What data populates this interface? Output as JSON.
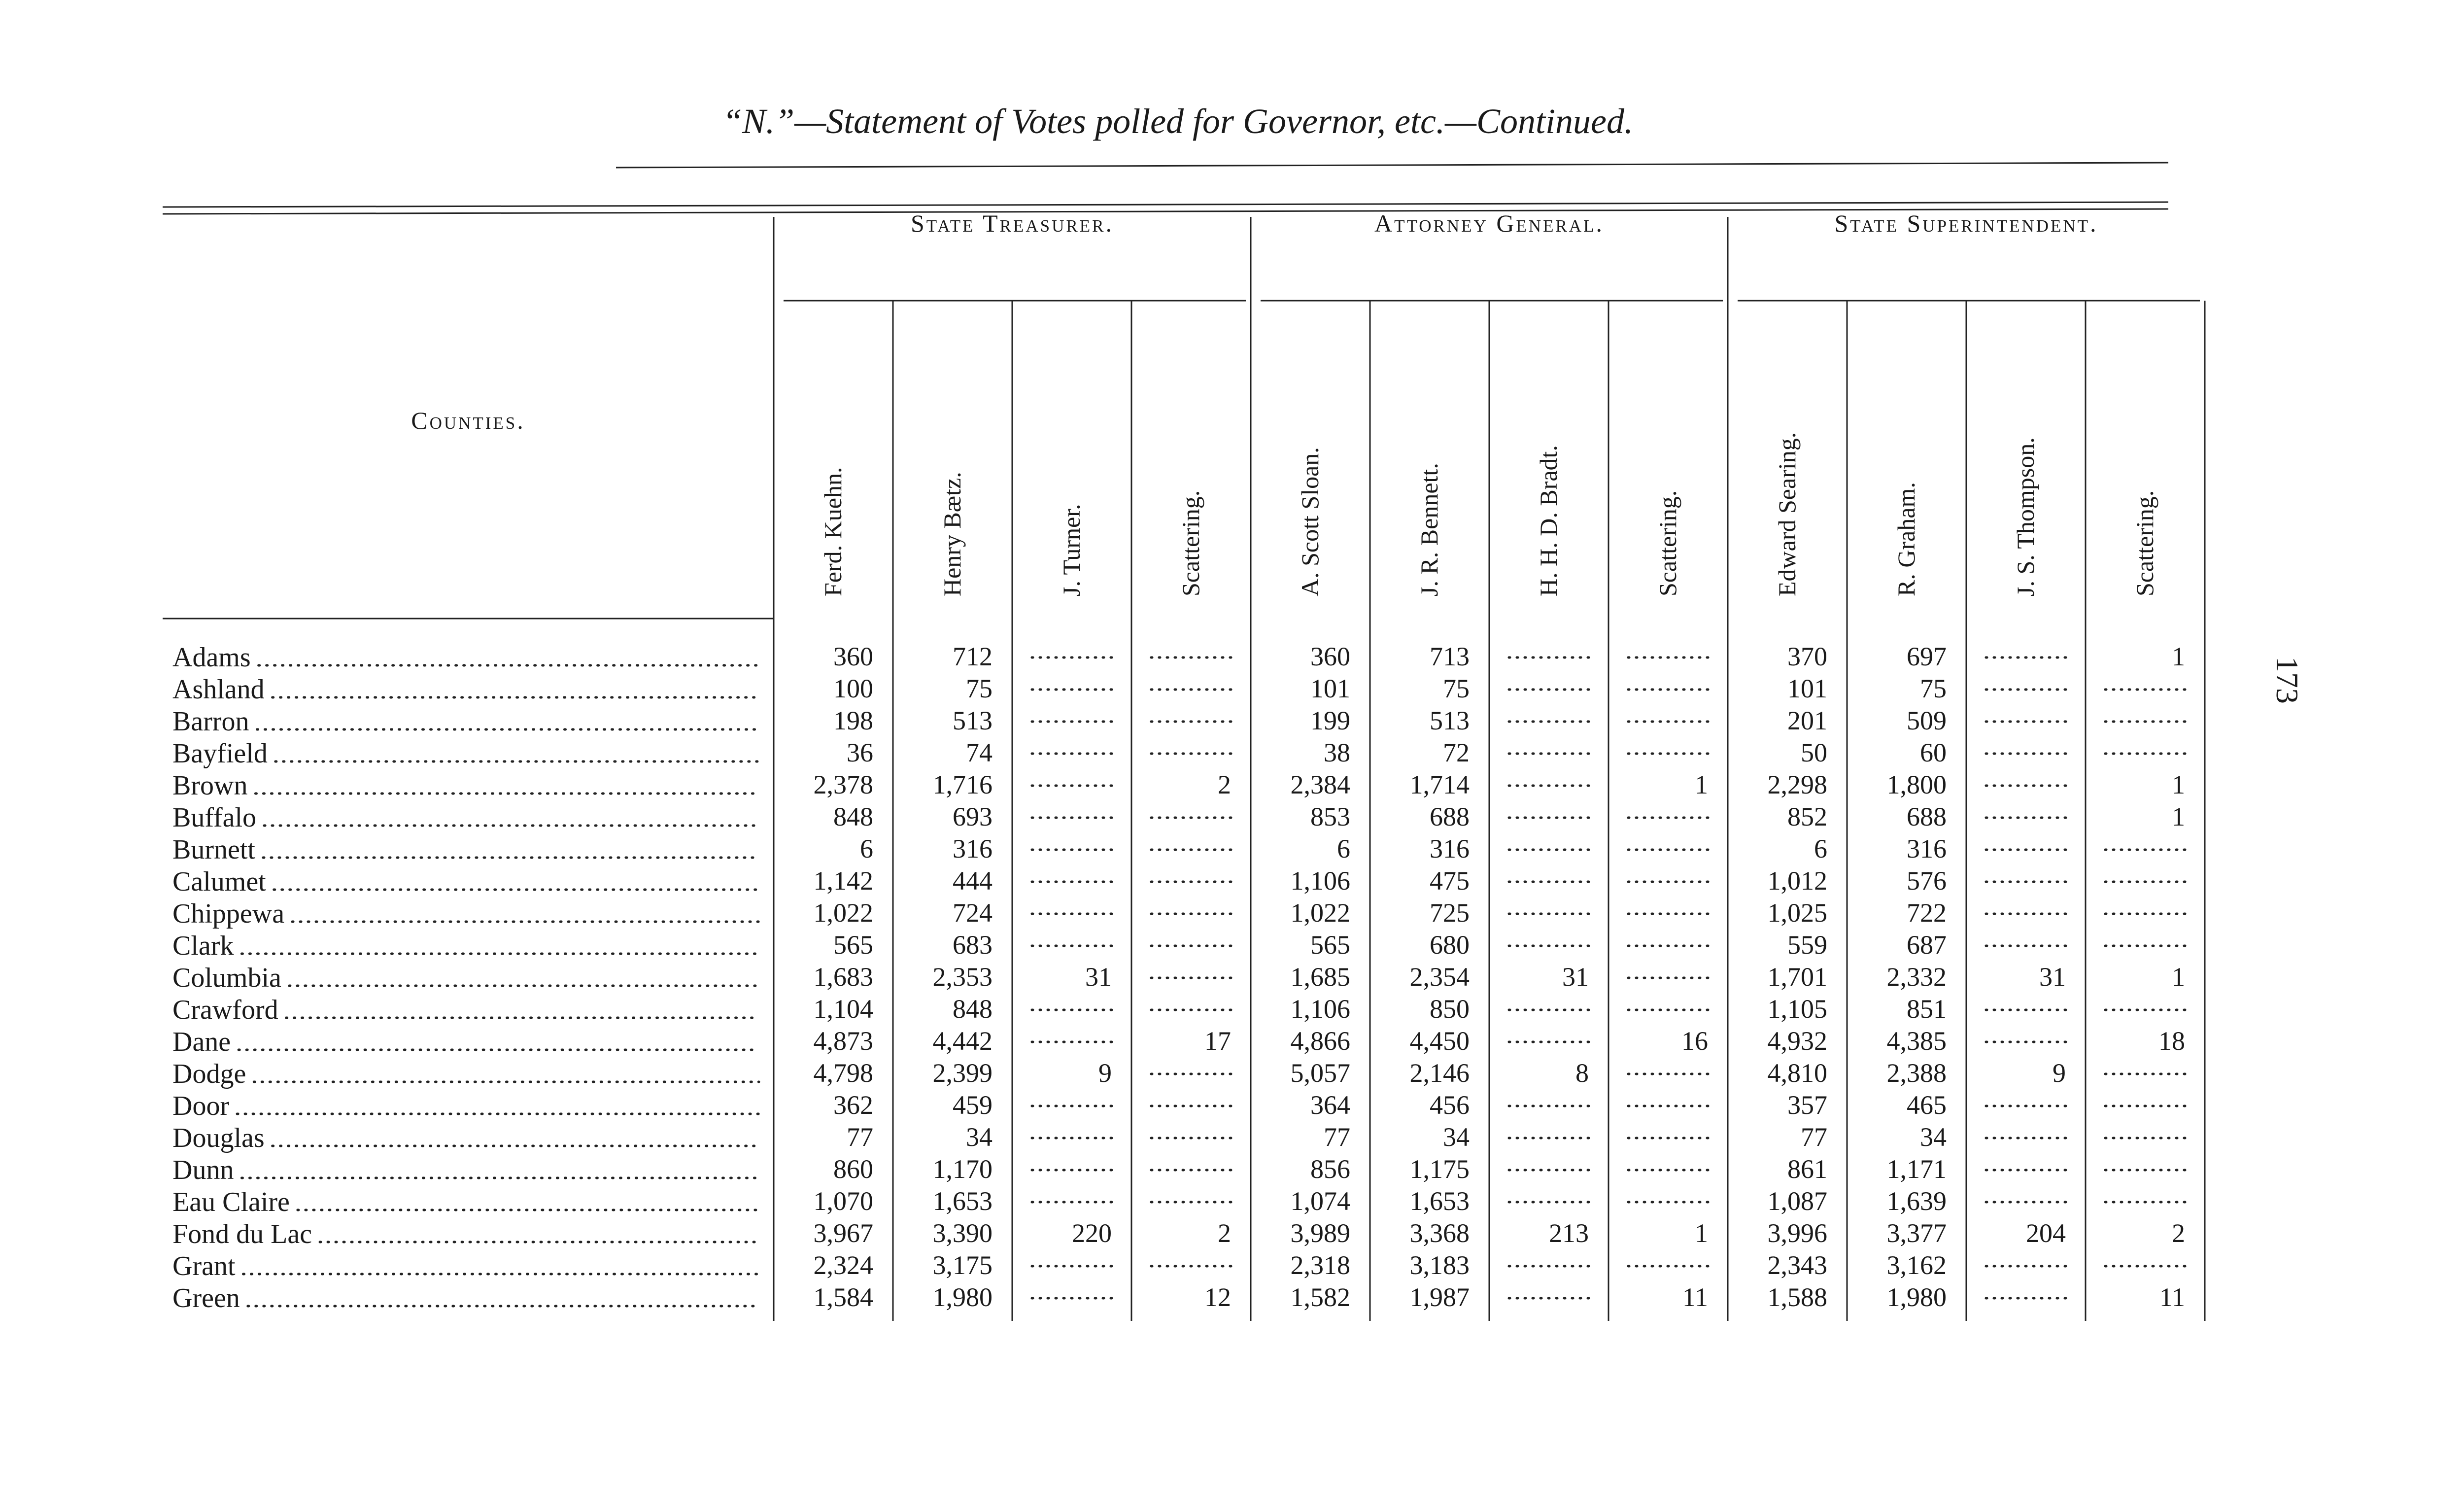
{
  "title": "“N.”—Statement of Votes polled for Governor, etc.—Continued.",
  "page_number": "173",
  "table": {
    "county_header": "Counties.",
    "groups": [
      {
        "title": "State Treasurer.",
        "columns": [
          "Ferd. Kuehn.",
          "Henry Bætz.",
          "J. Turner.",
          "Scattering."
        ]
      },
      {
        "title": "Attorney General.",
        "columns": [
          "A. Scott Sloan.",
          "J. R. Bennett.",
          "H. H. D. Bradt.",
          "Scattering."
        ]
      },
      {
        "title": "State Superintendent.",
        "columns": [
          "Edward Searing.",
          "R. Graham.",
          "J. S. Thompson.",
          "Scattering."
        ]
      }
    ],
    "rows": [
      {
        "county": "Adams",
        "values": [
          "360",
          "712",
          null,
          null,
          "360",
          "713",
          null,
          null,
          "370",
          "697",
          null,
          "1"
        ]
      },
      {
        "county": "Ashland",
        "values": [
          "100",
          "75",
          null,
          null,
          "101",
          "75",
          null,
          null,
          "101",
          "75",
          null,
          null
        ]
      },
      {
        "county": "Barron",
        "values": [
          "198",
          "513",
          null,
          null,
          "199",
          "513",
          null,
          null,
          "201",
          "509",
          null,
          null
        ]
      },
      {
        "county": "Bayfield",
        "values": [
          "36",
          "74",
          null,
          null,
          "38",
          "72",
          null,
          null,
          "50",
          "60",
          null,
          null
        ]
      },
      {
        "county": "Brown",
        "values": [
          "2,378",
          "1,716",
          null,
          "2",
          "2,384",
          "1,714",
          null,
          "1",
          "2,298",
          "1,800",
          null,
          "1"
        ]
      },
      {
        "county": "Buffalo",
        "values": [
          "848",
          "693",
          null,
          null,
          "853",
          "688",
          null,
          null,
          "852",
          "688",
          null,
          "1"
        ]
      },
      {
        "county": "Burnett",
        "values": [
          "6",
          "316",
          null,
          null,
          "6",
          "316",
          null,
          null,
          "6",
          "316",
          null,
          null
        ]
      },
      {
        "county": "Calumet",
        "values": [
          "1,142",
          "444",
          null,
          null,
          "1,106",
          "475",
          null,
          null,
          "1,012",
          "576",
          null,
          null
        ]
      },
      {
        "county": "Chippewa",
        "values": [
          "1,022",
          "724",
          null,
          null,
          "1,022",
          "725",
          null,
          null,
          "1,025",
          "722",
          null,
          null
        ]
      },
      {
        "county": "Clark",
        "values": [
          "565",
          "683",
          null,
          null,
          "565",
          "680",
          null,
          null,
          "559",
          "687",
          null,
          null
        ]
      },
      {
        "county": "Columbia",
        "values": [
          "1,683",
          "2,353",
          "31",
          null,
          "1,685",
          "2,354",
          "31",
          null,
          "1,701",
          "2,332",
          "31",
          "1"
        ]
      },
      {
        "county": "Crawford",
        "values": [
          "1,104",
          "848",
          null,
          null,
          "1,106",
          "850",
          null,
          null,
          "1,105",
          "851",
          null,
          null
        ]
      },
      {
        "county": "Dane",
        "values": [
          "4,873",
          "4,442",
          null,
          "17",
          "4,866",
          "4,450",
          null,
          "16",
          "4,932",
          "4,385",
          null,
          "18"
        ]
      },
      {
        "county": "Dodge",
        "values": [
          "4,798",
          "2,399",
          "9",
          null,
          "5,057",
          "2,146",
          "8",
          null,
          "4,810",
          "2,388",
          "9",
          null
        ]
      },
      {
        "county": "Door",
        "values": [
          "362",
          "459",
          null,
          null,
          "364",
          "456",
          null,
          null,
          "357",
          "465",
          null,
          null
        ]
      },
      {
        "county": "Douglas",
        "values": [
          "77",
          "34",
          null,
          null,
          "77",
          "34",
          null,
          null,
          "77",
          "34",
          null,
          null
        ]
      },
      {
        "county": "Dunn",
        "values": [
          "860",
          "1,170",
          null,
          null,
          "856",
          "1,175",
          null,
          null,
          "861",
          "1,171",
          null,
          null
        ]
      },
      {
        "county": "Eau Claire",
        "values": [
          "1,070",
          "1,653",
          null,
          null,
          "1,074",
          "1,653",
          null,
          null,
          "1,087",
          "1,639",
          null,
          null
        ]
      },
      {
        "county": "Fond du Lac",
        "values": [
          "3,967",
          "3,390",
          "220",
          "2",
          "3,989",
          "3,368",
          "213",
          "1",
          "3,996",
          "3,377",
          "204",
          "2"
        ]
      },
      {
        "county": "Grant",
        "values": [
          "2,324",
          "3,175",
          null,
          null,
          "2,318",
          "3,183",
          null,
          null,
          "2,343",
          "3,162",
          null,
          null
        ]
      },
      {
        "county": "Green",
        "values": [
          "1,584",
          "1,980",
          null,
          "12",
          "1,582",
          "1,987",
          null,
          "11",
          "1,588",
          "1,980",
          null,
          "11"
        ]
      }
    ]
  }
}
